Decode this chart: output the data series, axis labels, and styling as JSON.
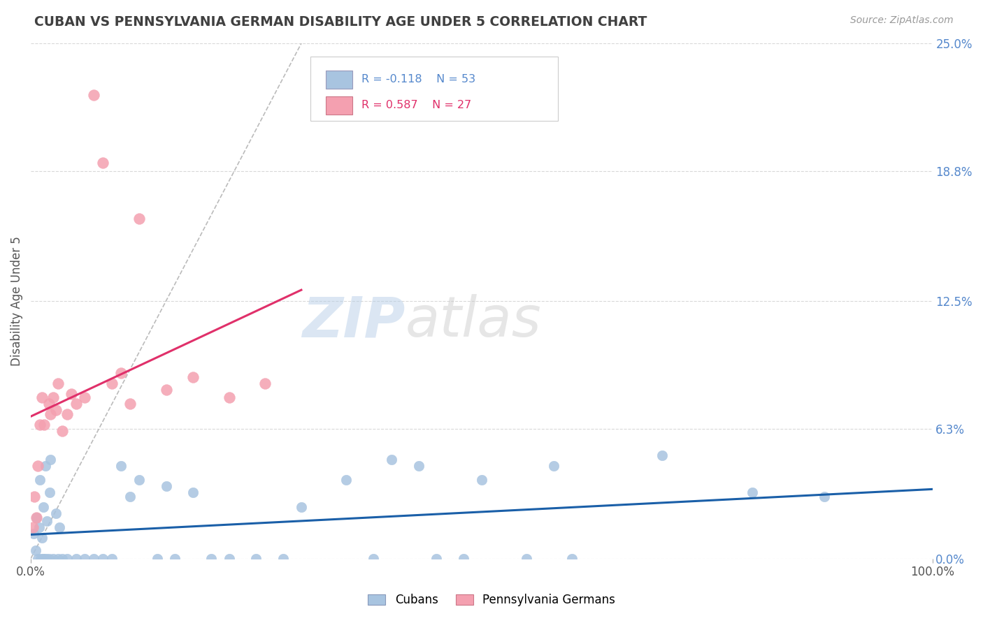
{
  "title": "CUBAN VS PENNSYLVANIA GERMAN DISABILITY AGE UNDER 5 CORRELATION CHART",
  "source_text": "Source: ZipAtlas.com",
  "ylabel": "Disability Age Under 5",
  "xlim": [
    0,
    100
  ],
  "ylim": [
    0,
    25
  ],
  "ytick_labels": [
    "0.0%",
    "6.3%",
    "12.5%",
    "18.8%",
    "25.0%"
  ],
  "ytick_values": [
    0,
    6.3,
    12.5,
    18.8,
    25.0
  ],
  "cuban_R": -0.118,
  "cuban_N": 53,
  "pa_german_R": 0.587,
  "pa_german_N": 27,
  "cuban_color": "#a8c4e0",
  "pa_german_color": "#f4a0b0",
  "cuban_line_color": "#1a5fa8",
  "pa_german_line_color": "#e0306a",
  "diagonal_color": "#bbbbbb",
  "background_color": "#ffffff",
  "grid_color": "#d8d8d8",
  "title_color": "#404040",
  "right_label_color": "#5588cc",
  "watermark_zip": "ZIP",
  "watermark_atlas": "atlas",
  "cubans_x": [
    0.3,
    0.5,
    0.6,
    0.8,
    0.9,
    1.0,
    1.1,
    1.2,
    1.3,
    1.4,
    1.5,
    1.6,
    1.7,
    1.8,
    2.0,
    2.1,
    2.2,
    2.5,
    2.8,
    3.0,
    3.2,
    3.5,
    4.0,
    5.0,
    6.0,
    7.0,
    8.0,
    9.0,
    10.0,
    11.0,
    12.0,
    14.0,
    15.0,
    16.0,
    18.0,
    20.0,
    22.0,
    25.0,
    28.0,
    30.0,
    35.0,
    38.0,
    40.0,
    43.0,
    45.0,
    48.0,
    50.0,
    55.0,
    58.0,
    60.0,
    70.0,
    80.0,
    88.0
  ],
  "cubans_y": [
    1.2,
    0.4,
    2.0,
    0.0,
    1.5,
    3.8,
    0.0,
    1.0,
    0.0,
    2.5,
    0.0,
    4.5,
    0.0,
    1.8,
    0.0,
    3.2,
    4.8,
    0.0,
    2.2,
    0.0,
    1.5,
    0.0,
    0.0,
    0.0,
    0.0,
    0.0,
    0.0,
    0.0,
    4.5,
    3.0,
    3.8,
    0.0,
    3.5,
    0.0,
    3.2,
    0.0,
    0.0,
    0.0,
    0.0,
    2.5,
    3.8,
    0.0,
    4.8,
    4.5,
    0.0,
    0.0,
    3.8,
    0.0,
    4.5,
    0.0,
    5.0,
    3.2,
    3.0
  ],
  "pa_german_x": [
    0.2,
    0.4,
    0.6,
    0.8,
    1.0,
    1.2,
    1.5,
    2.0,
    2.2,
    2.5,
    2.8,
    3.0,
    3.5,
    4.0,
    4.5,
    5.0,
    6.0,
    7.0,
    8.0,
    9.0,
    10.0,
    11.0,
    12.0,
    15.0,
    18.0,
    22.0,
    26.0
  ],
  "pa_german_y": [
    1.5,
    3.0,
    2.0,
    4.5,
    6.5,
    7.8,
    6.5,
    7.5,
    7.0,
    7.8,
    7.2,
    8.5,
    6.2,
    7.0,
    8.0,
    7.5,
    7.8,
    22.5,
    19.2,
    8.5,
    9.0,
    7.5,
    16.5,
    8.2,
    8.8,
    7.8,
    8.5
  ]
}
